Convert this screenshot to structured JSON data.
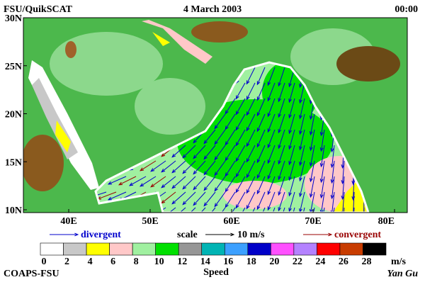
{
  "header": {
    "left": "FSU/QuikSCAT",
    "center": "4 March 2003",
    "right": "00:00"
  },
  "map": {
    "lat_labels": [
      "30N",
      "25N",
      "20N",
      "15N",
      "10N"
    ],
    "lon_labels": [
      "40E",
      "50E",
      "60E",
      "70E",
      "80E"
    ]
  },
  "legend": {
    "divergent": "divergent",
    "divergent_color": "#0000cc",
    "scale": "scale",
    "scale_value": "10 m/s",
    "convergent": "convergent",
    "convergent_color": "#990000"
  },
  "colorbar": {
    "labels": [
      0,
      2,
      4,
      6,
      8,
      10,
      12,
      14,
      16,
      18,
      20,
      22,
      24,
      26,
      28
    ],
    "colors": [
      "#ffffff",
      "#c8c8c8",
      "#ffff00",
      "#ffc8c8",
      "#a0f0a0",
      "#00e000",
      "#969696",
      "#00b4b4",
      "#3ca0ff",
      "#0000c8",
      "#ff50ff",
      "#b482ff",
      "#ff0000",
      "#c83c00",
      "#000000"
    ],
    "unit": "m/s",
    "title": "Speed"
  },
  "footer": {
    "left": "COAPS-FSU",
    "right": "Yan Gu"
  }
}
